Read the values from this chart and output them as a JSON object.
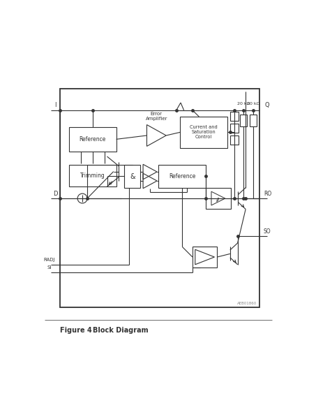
{
  "fig_width": 4.43,
  "fig_height": 5.77,
  "dpi": 100,
  "bg_color": "#ffffff",
  "lc": "#333333",
  "lw": 0.8,
  "title": "Figure 4",
  "title_label": "Block Diagram",
  "watermark": "AEB01860"
}
